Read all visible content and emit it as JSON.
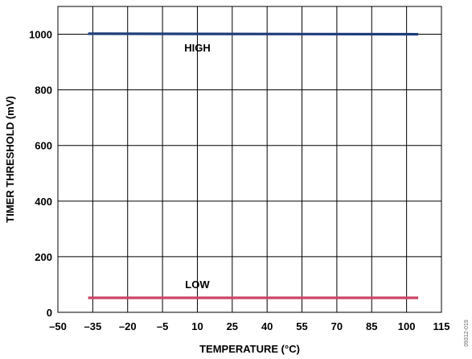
{
  "chart_data": {
    "type": "line",
    "xlabel": "TEMPERATURE (°C)",
    "ylabel": "TIMER THRESHOLD (mV)",
    "xlim": [
      -50,
      115
    ],
    "ylim": [
      0,
      1100
    ],
    "xticks": [
      -50,
      -35,
      -20,
      -5,
      10,
      25,
      40,
      55,
      70,
      85,
      100,
      115
    ],
    "xtick_labels": [
      "–50",
      "–35",
      "–20",
      "–5",
      "10",
      "25",
      "40",
      "55",
      "70",
      "85",
      "100",
      "115"
    ],
    "yticks": [
      0,
      200,
      400,
      600,
      800,
      1000
    ],
    "ytick_labels": [
      "0",
      "200",
      "400",
      "600",
      "800",
      "1000"
    ],
    "grid": true,
    "series": [
      {
        "name": "HIGH",
        "color": "#1f3d7a",
        "x": [
          -37,
          105
        ],
        "y": [
          1002,
          1000
        ]
      },
      {
        "name": "LOW",
        "color": "#cc4466",
        "x": [
          -37,
          105
        ],
        "y": [
          52,
          52
        ]
      }
    ],
    "figure_id": "09312-019"
  }
}
